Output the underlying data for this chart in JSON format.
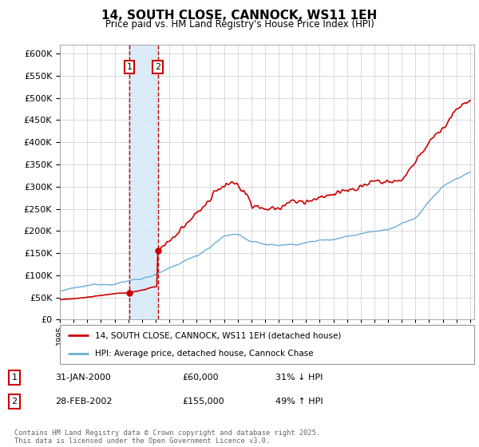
{
  "title": "14, SOUTH CLOSE, CANNOCK, WS11 1EH",
  "subtitle": "Price paid vs. HM Land Registry's House Price Index (HPI)",
  "legend_line1": "14, SOUTH CLOSE, CANNOCK, WS11 1EH (detached house)",
  "legend_line2": "HPI: Average price, detached house, Cannock Chase",
  "transaction1_date": "31-JAN-2000",
  "transaction1_price": "£60,000",
  "transaction1_hpi": "31% ↓ HPI",
  "transaction2_date": "28-FEB-2002",
  "transaction2_price": "£155,000",
  "transaction2_hpi": "49% ↑ HPI",
  "footer": "Contains HM Land Registry data © Crown copyright and database right 2025.\nThis data is licensed under the Open Government Licence v3.0.",
  "hpi_color": "#6baed6",
  "price_color": "#cc0000",
  "vline1_color": "#cc0000",
  "vline2_color": "#cc0000",
  "shade_color": "#d6e8f7",
  "box1_color": "#cc0000",
  "box2_color": "#cc0000",
  "ylim_min": 0,
  "ylim_max": 620000,
  "t1_year": 2000.08,
  "t2_year": 2002.16,
  "t1_price": 60000,
  "t2_price": 155000
}
